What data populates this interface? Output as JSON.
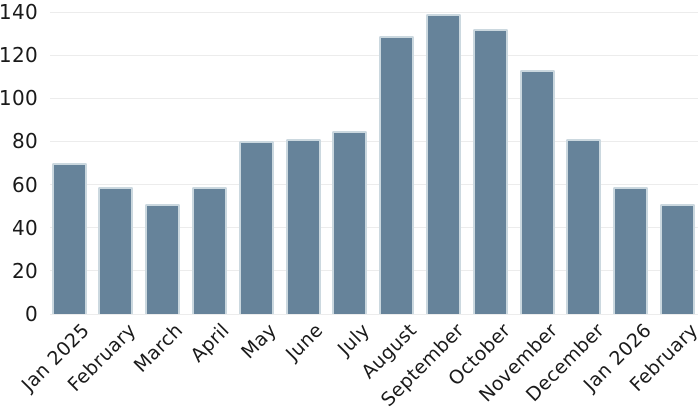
{
  "chart_data": {
    "type": "bar",
    "title": "",
    "xlabel": "",
    "ylabel": "",
    "categories": [
      "Jan 2025",
      "February",
      "March",
      "April",
      "May",
      "June",
      "July",
      "August",
      "September",
      "October",
      "November",
      "December",
      "Jan 2026",
      "February"
    ],
    "values": [
      70,
      59,
      51,
      59,
      80,
      81,
      85,
      129,
      139,
      132,
      113,
      81,
      59,
      51
    ],
    "ylim": [
      0,
      140
    ],
    "yticks": [
      0,
      20,
      40,
      60,
      80,
      100,
      120,
      140
    ],
    "ytick_labels": [
      "0",
      "20",
      "40",
      "60",
      "80",
      "100",
      "120",
      "140"
    ],
    "x_label_rotation_deg": -45,
    "grid": true,
    "legend": false,
    "colors": {
      "bar_fill": "#66839A",
      "bar_stroke": "#CBD8DF",
      "gridline": "#ECECEC",
      "label_text": "#1A1A1A",
      "background": "#FFFFFF"
    }
  }
}
